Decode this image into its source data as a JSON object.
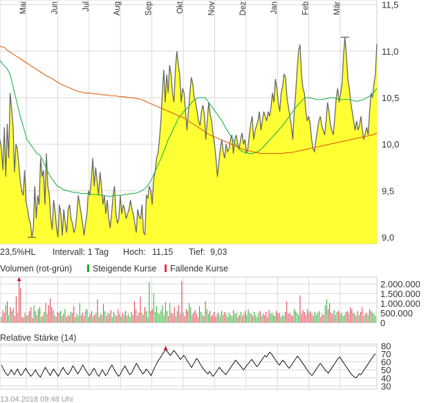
{
  "chart_data": [
    {
      "type": "area",
      "panel": "price",
      "x_tick_labels": [
        "Mai",
        "Jun",
        "Jul",
        "Aug",
        "Sep",
        "Okt",
        "Nov",
        "Dez",
        "Jan",
        "Feb",
        "Mär"
      ],
      "y_tick_labels": [
        "9,0",
        "9,5",
        "10,0",
        "10,5",
        "11,0",
        "11,5"
      ],
      "y_ticks": [
        9.0,
        9.5,
        10.0,
        10.5,
        11.0,
        11.5
      ],
      "ylim": [
        8.93,
        11.55
      ],
      "grid": true,
      "series": [
        {
          "values": [
            10.05,
            9.95,
            9.72,
            10.18,
            9.65,
            10.22,
            9.85,
            10.55,
            10.38,
            10.2,
            9.7,
            10.0,
            9.95,
            9.78,
            9.6,
            9.5,
            9.45,
            9.72,
            9.38,
            9.3,
            9.2,
            9.15,
            9.0,
            9.1,
            9.55,
            9.2,
            9.45,
            9.35,
            9.85,
            9.65,
            9.72,
            9.35,
            9.9,
            9.55,
            9.45,
            9.2,
            9.08,
            9.4,
            9.28,
            9.1,
            9.0,
            9.35,
            9.25,
            9.02,
            9.3,
            9.15,
            9.05,
            9.3,
            9.35,
            9.2,
            9.15,
            9.05,
            9.1,
            9.25,
            9.45,
            9.35,
            9.25,
            9.15,
            9.02,
            9.15,
            9.25,
            9.5,
            9.45,
            9.62,
            9.85,
            9.55,
            9.75,
            9.6,
            9.45,
            9.7,
            9.55,
            9.35,
            9.45,
            9.25,
            9.4,
            9.2,
            9.1,
            9.25,
            9.45,
            9.55,
            9.25,
            9.15,
            9.2,
            9.45,
            9.25,
            9.35,
            9.3,
            9.2,
            9.25,
            9.3,
            9.4,
            9.3,
            9.25,
            9.15,
            9.05,
            9.3,
            9.22,
            9.2,
            9.35,
            9.05,
            9.03,
            9.45,
            9.42,
            9.55,
            9.5,
            9.35,
            9.62,
            9.7,
            9.85,
            9.9,
            10.05,
            10.25,
            10.55,
            10.8,
            10.45,
            10.75,
            10.55,
            10.85,
            10.75,
            10.55,
            10.45,
            10.8,
            11.0,
            10.85,
            10.75,
            10.45,
            10.6,
            10.55,
            10.35,
            10.15,
            10.35,
            10.55,
            10.72,
            10.65,
            10.5,
            10.45,
            10.35,
            10.25,
            10.2,
            10.35,
            10.42,
            10.32,
            10.05,
            10.25,
            10.45,
            10.32,
            10.25,
            10.1,
            10.0,
            9.85,
            9.65,
            9.8,
            9.95,
            10.05,
            9.92,
            9.85,
            10.0,
            9.92,
            9.95,
            10.05,
            10.1,
            9.9,
            10.05,
            10.1,
            10.0,
            9.95,
            10.05,
            10.12,
            10.0,
            10.05,
            9.9,
            9.95,
            10.1,
            10.22,
            10.3,
            10.05,
            10.15,
            10.2,
            10.25,
            10.35,
            10.15,
            10.25,
            10.35,
            10.3,
            10.25,
            10.35,
            10.3,
            10.4,
            10.55,
            10.45,
            10.7,
            10.6,
            10.45,
            10.35,
            10.55,
            10.62,
            10.75,
            10.72,
            10.5,
            10.4,
            10.3,
            10.2,
            10.05,
            10.35,
            10.55,
            10.8,
            11.0,
            11.07,
            10.75,
            10.6,
            10.55,
            10.35,
            10.25,
            10.3,
            10.22,
            10.05,
            9.95,
            9.92,
            10.05,
            10.15,
            10.25,
            10.3,
            10.2,
            10.15,
            10.1,
            10.25,
            10.45,
            10.35,
            10.2,
            10.15,
            10.1,
            10.3,
            10.5,
            10.6,
            10.45,
            10.55,
            10.65,
            10.95,
            11.15,
            10.95,
            10.7,
            10.6,
            10.45,
            10.35,
            10.25,
            10.15,
            10.25,
            10.15,
            10.2,
            10.3,
            10.15,
            10.05,
            10.12,
            10.18,
            10.1,
            10.35,
            10.55,
            10.5,
            10.65,
            10.75,
            11.08
          ]
        },
        {
          "values": [
            10.9,
            10.85,
            10.82,
            10.75,
            10.6,
            10.45,
            10.3,
            10.18,
            10.05,
            10.0,
            9.95,
            9.9,
            9.88,
            9.8,
            9.72,
            9.65,
            9.6,
            9.55,
            9.53,
            9.51,
            9.5,
            9.49,
            9.48,
            9.48,
            9.47,
            9.47,
            9.47,
            9.46,
            9.46,
            9.46,
            9.45,
            9.45,
            9.44,
            9.44,
            9.45,
            9.45,
            9.45,
            9.46,
            9.46,
            9.47,
            9.47,
            9.48,
            9.5,
            9.52,
            9.56,
            9.62,
            9.7,
            9.78,
            9.86,
            9.95,
            10.05,
            10.12,
            10.2,
            10.28,
            10.32,
            10.37,
            10.4,
            10.45,
            10.48,
            10.5,
            10.5,
            10.5,
            10.45,
            10.4,
            10.35,
            10.3,
            10.25,
            10.18,
            10.12,
            10.06,
            10.0,
            9.95,
            9.92,
            9.91,
            9.9,
            9.9,
            9.91,
            9.93,
            9.96,
            10.0,
            10.04,
            10.08,
            10.12,
            10.16,
            10.2,
            10.25,
            10.3,
            10.35,
            10.4,
            10.44,
            10.48,
            10.5,
            10.5,
            10.49,
            10.48,
            10.48,
            10.48,
            10.49,
            10.5,
            10.5,
            10.49,
            10.48,
            10.48,
            10.48,
            10.48,
            10.47,
            10.46,
            10.47,
            10.48,
            10.5,
            10.52,
            10.55,
            10.6
          ]
        },
        {
          "values": [
            11.05,
            11.04,
            11.0,
            10.97,
            10.94,
            10.91,
            10.88,
            10.85,
            10.82,
            10.79,
            10.76,
            10.73,
            10.71,
            10.68,
            10.65,
            10.63,
            10.61,
            10.59,
            10.57,
            10.56,
            10.55,
            10.55,
            10.54,
            10.54,
            10.53,
            10.53,
            10.52,
            10.52,
            10.51,
            10.51,
            10.5,
            10.5,
            10.49,
            10.48,
            10.46,
            10.44,
            10.42,
            10.4,
            10.38,
            10.36,
            10.34,
            10.32,
            10.3,
            10.28,
            10.25,
            10.22,
            10.19,
            10.16,
            10.13,
            10.1,
            10.08,
            10.06,
            10.04,
            10.02,
            10.0,
            9.98,
            9.96,
            9.94,
            9.93,
            9.92,
            9.91,
            9.9,
            9.9,
            9.9,
            9.9,
            9.9,
            9.9,
            9.91,
            9.91,
            9.92,
            9.93,
            9.94,
            9.95,
            9.96,
            9.97,
            9.98,
            9.99,
            10.0,
            10.01,
            10.02,
            10.03,
            10.04,
            10.05,
            10.06,
            10.07,
            10.08,
            10.09,
            10.1,
            10.12
          ]
        }
      ]
    },
    {
      "type": "bar",
      "panel": "volume",
      "title": "Volumen (rot-grün)",
      "legend": [
        "Steigende Kurse",
        "Fallende Kurse"
      ],
      "legend_colors": [
        "#22aa22",
        "#dd3344"
      ],
      "y_tick_labels": [
        "0",
        "500.000",
        "1.000.000",
        "1.500.000",
        "2.000.000"
      ],
      "y_ticks": [
        0,
        500000,
        1000000,
        1500000,
        2000000
      ],
      "ylim": [
        0,
        2350000
      ],
      "values": [
        300000,
        650000,
        500000,
        900000,
        1100000,
        400000,
        800000,
        600000,
        750000,
        350000,
        1350000,
        500000,
        2150000,
        1800000,
        300000,
        250000,
        500000,
        350000,
        400000,
        600000,
        800000,
        250000,
        900000,
        600000,
        400000,
        700000,
        800000,
        300000,
        350000,
        550000,
        1000000,
        450000,
        900000,
        1250000,
        800000,
        650000,
        400000,
        300000,
        550000,
        500000,
        600000,
        350000,
        450000,
        700000,
        300000,
        400000,
        350000,
        550000,
        500000,
        850000,
        300000,
        450000,
        350000,
        1000000,
        400000,
        500000,
        350000,
        650000,
        700000,
        300000,
        450000,
        600000,
        350000,
        400000,
        500000,
        1200000,
        300000,
        450000,
        400000,
        950000,
        600000,
        350000,
        500000,
        450000,
        650000,
        300000,
        550000,
        400000,
        350000,
        700000,
        450000,
        300000,
        500000,
        400000,
        600000,
        350000,
        450000,
        300000,
        550000,
        400000,
        1100000,
        700000,
        350000,
        500000,
        1350000,
        500000,
        400000,
        800000,
        600000,
        300000,
        2100000,
        600000,
        700000,
        1500000,
        550000,
        850000,
        500000,
        450000,
        650000,
        900000,
        400000,
        1050000,
        600000,
        350000,
        1000000,
        500000,
        450000,
        800000,
        350000,
        600000,
        900000,
        450000,
        2150000,
        500000,
        350000,
        700000,
        600000,
        1000000,
        800000,
        400000,
        500000,
        650000,
        450000,
        300000,
        850000,
        550000,
        400000,
        350000,
        1100000,
        700000,
        450000,
        600000,
        350000,
        400000,
        550000,
        300000,
        450000,
        500000,
        350000,
        600000,
        400000,
        550000,
        450000,
        300000,
        500000,
        400000,
        350000,
        650000,
        450000,
        500000,
        300000,
        400000,
        550000,
        350000,
        450000,
        600000,
        400000,
        700000,
        500000,
        450000,
        350000,
        550000,
        400000,
        300000,
        500000,
        600000,
        350000,
        450000,
        400000,
        550000,
        300000,
        650000,
        450000,
        500000,
        400000,
        350000,
        600000,
        450000,
        500000,
        300000,
        400000,
        350000,
        550000,
        1100000,
        450000,
        500000,
        400000,
        350000,
        700000,
        600000,
        500000,
        400000,
        1400000,
        450000,
        650000,
        550000,
        400000,
        700000,
        500000,
        600000,
        450000,
        350000,
        550000,
        400000,
        500000,
        600000,
        300000,
        450000,
        400000,
        900000,
        1200000,
        700000,
        1000000,
        500000,
        450000,
        650000,
        400000,
        550000,
        600000,
        450000,
        500000,
        350000,
        400000,
        550000,
        600000,
        450000,
        800000,
        700000,
        500000,
        450000,
        350000,
        600000,
        400000,
        550000,
        800000,
        350000,
        450000,
        500000,
        400000,
        700000,
        600000,
        500000,
        450000,
        350000
      ]
    },
    {
      "type": "line",
      "panel": "rsi",
      "title": "Relative Stärke (14)",
      "y_tick_labels": [
        "30",
        "40",
        "50",
        "60",
        "70",
        "80"
      ],
      "y_ticks": [
        30,
        40,
        50,
        60,
        70,
        80
      ],
      "ylim": [
        26,
        82
      ],
      "values": [
        56,
        52,
        48,
        45,
        43,
        46,
        50,
        47,
        44,
        48,
        51,
        46,
        43,
        45,
        49,
        52,
        48,
        45,
        42,
        44,
        47,
        50,
        46,
        43,
        41,
        45,
        49,
        53,
        50,
        46,
        43,
        47,
        51,
        48,
        45,
        42,
        46,
        50,
        53,
        49,
        46,
        44,
        47,
        51,
        55,
        52,
        48,
        45,
        48,
        52,
        56,
        53,
        49,
        46,
        43,
        45,
        49,
        52,
        48,
        44,
        42,
        46,
        50,
        47,
        43,
        45,
        49,
        53,
        56,
        52,
        48,
        45,
        42,
        44,
        48,
        52,
        55,
        51,
        47,
        44,
        46,
        50,
        54,
        58,
        55,
        51,
        48,
        45,
        47,
        51,
        49,
        46,
        43,
        47,
        52,
        56,
        60,
        63,
        66,
        70,
        72,
        75,
        73,
        70,
        68,
        71,
        74,
        72,
        69,
        66,
        63,
        65,
        68,
        66,
        62,
        59,
        56,
        53,
        57,
        60,
        64,
        62,
        58,
        55,
        52,
        49,
        47,
        45,
        48,
        45,
        42,
        44,
        47,
        50,
        53,
        51,
        48,
        46,
        44,
        47,
        50,
        53,
        56,
        59,
        62,
        60,
        57,
        55,
        52,
        50,
        53,
        56,
        58,
        61,
        63,
        60,
        57,
        54,
        56,
        59,
        62,
        65,
        68,
        66,
        69,
        72,
        70,
        67,
        64,
        61,
        58,
        56,
        59,
        62,
        60,
        57,
        54,
        52,
        55,
        58,
        61,
        64,
        67,
        65,
        62,
        59,
        56,
        53,
        50,
        47,
        45,
        43,
        46,
        49,
        52,
        55,
        58,
        56,
        53,
        50,
        48,
        46,
        49,
        52,
        55,
        58,
        61,
        64,
        66,
        63,
        60,
        57,
        54,
        51,
        48,
        45,
        43,
        41,
        40,
        42,
        45,
        44,
        47,
        50,
        53,
        56,
        59,
        62,
        65,
        68,
        70
      ]
    }
  ],
  "stats": {
    "range_label": "23,5%HL",
    "interval_label": "Intervall: 1 Tag",
    "high_label": "Hoch:",
    "high_value": "11,15",
    "low_label": "Tief:",
    "low_value": "9,03"
  },
  "footer": {
    "timestamp": "13.04.2018 09:48 Uhr"
  },
  "colors": {
    "area_fill": "#ffff33",
    "price_line": "#666666",
    "sma_short": "#22b24c",
    "sma_long": "#e06010",
    "up": "#22aa22",
    "down": "#dd3344",
    "rsi_line": "#111111",
    "marker": "#cc2233",
    "grid": "#d8d8d8"
  }
}
